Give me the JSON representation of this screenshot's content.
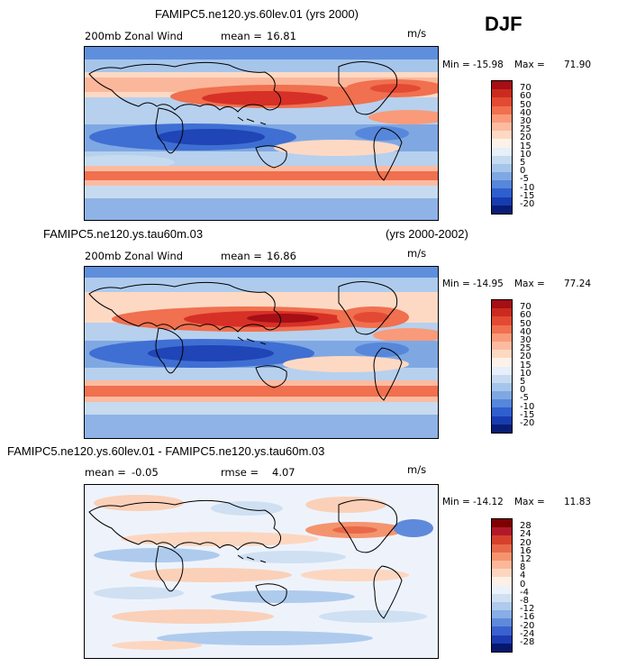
{
  "season": "DJF",
  "chart_data": [
    {
      "type": "heatmap",
      "title": "FAMIPC5.ne120.ys.60lev.01 (yrs 2000)",
      "variable": "200mb Zonal Wind",
      "mean_label": "mean =",
      "mean": "16.81",
      "units": "m/s",
      "min_label": "Min =",
      "min": "-15.98",
      "max_label": "Max =",
      "max": "71.90",
      "colorbar_levels": [
        "70",
        "60",
        "50",
        "40",
        "30",
        "25",
        "20",
        "15",
        "10",
        "5",
        "0",
        "-5",
        "-10",
        "-15",
        "-20"
      ],
      "colorbar_colors": [
        "#a50f15",
        "#cb2b1f",
        "#e34a33",
        "#f0704f",
        "#f99a7a",
        "#fcbba1",
        "#fdd9c4",
        "#fdf2e9",
        "#e6effa",
        "#c6dbef",
        "#a6c5ea",
        "#7fa8e3",
        "#5687da",
        "#2f5fcf",
        "#163cb0",
        "#081d75"
      ]
    },
    {
      "type": "heatmap",
      "title": "FAMIPC5.ne120.ys.tau60m.03",
      "title_right": "(yrs 2000-2002)",
      "variable": "200mb Zonal Wind",
      "mean_label": "mean =",
      "mean": "16.86",
      "units": "m/s",
      "min_label": "Min =",
      "min": "-14.95",
      "max_label": "Max =",
      "max": "77.24",
      "colorbar_levels": [
        "70",
        "60",
        "50",
        "40",
        "30",
        "25",
        "20",
        "15",
        "10",
        "5",
        "0",
        "-5",
        "-10",
        "-15",
        "-20"
      ],
      "colorbar_colors": [
        "#a50f15",
        "#cb2b1f",
        "#e34a33",
        "#f0704f",
        "#f99a7a",
        "#fcbba1",
        "#fdd9c4",
        "#fdf2e9",
        "#e6effa",
        "#c6dbef",
        "#a6c5ea",
        "#7fa8e3",
        "#5687da",
        "#2f5fcf",
        "#163cb0",
        "#081d75"
      ]
    },
    {
      "type": "heatmap",
      "title": "FAMIPC5.ne120.ys.60lev.01 - FAMIPC5.ne120.ys.tau60m.03",
      "mean_label": "mean =",
      "mean": "-0.05",
      "rmse_label": "rmse =",
      "rmse": "4.07",
      "units": "m/s",
      "min_label": "Min =",
      "min": "-14.12",
      "max_label": "Max =",
      "max": "11.83",
      "colorbar_levels": [
        "28",
        "24",
        "20",
        "16",
        "12",
        "8",
        "4",
        "0",
        "-4",
        "-8",
        "-12",
        "-16",
        "-20",
        "-24",
        "-28"
      ],
      "colorbar_colors": [
        "#7f0000",
        "#b2182b",
        "#d6412b",
        "#e8694a",
        "#f4946f",
        "#fbb898",
        "#fdd6c0",
        "#fdf0e6",
        "#ecf2fb",
        "#cfe0f3",
        "#aecbee",
        "#88aee6",
        "#5f8adb",
        "#3a62cf",
        "#1d3bb0",
        "#06176e"
      ]
    }
  ]
}
